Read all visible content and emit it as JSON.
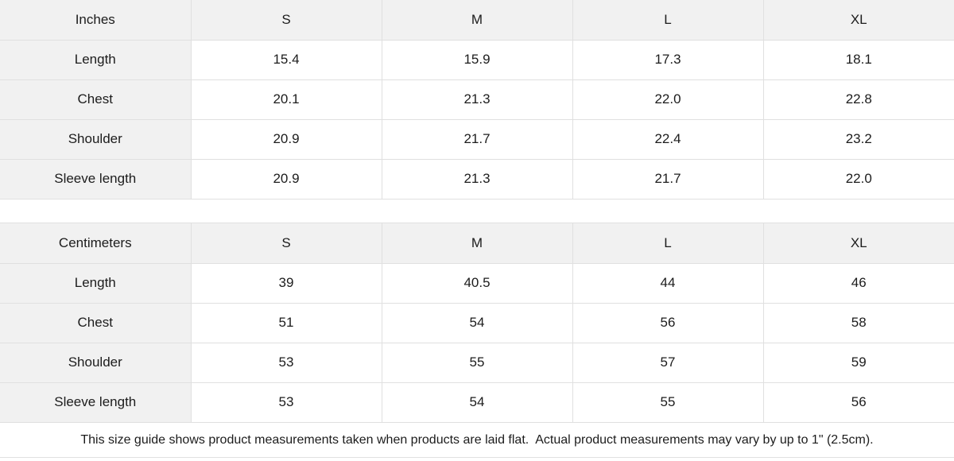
{
  "colors": {
    "header_bg": "#f1f1f1",
    "grid_border": "#e0e0e0",
    "cell_bg": "#ffffff",
    "text": "#1c1c1c"
  },
  "tables": [
    {
      "unit_label": "Inches",
      "columns": [
        "S",
        "M",
        "L",
        "XL"
      ],
      "rows": [
        {
          "label": "Length",
          "values": [
            "15.4",
            "15.9",
            "17.3",
            "18.1"
          ]
        },
        {
          "label": "Chest",
          "values": [
            "20.1",
            "21.3",
            "22.0",
            "22.8"
          ]
        },
        {
          "label": "Shoulder",
          "values": [
            "20.9",
            "21.7",
            "22.4",
            "23.2"
          ]
        },
        {
          "label": "Sleeve length",
          "values": [
            "20.9",
            "21.3",
            "21.7",
            "22.0"
          ]
        }
      ]
    },
    {
      "unit_label": "Centimeters",
      "columns": [
        "S",
        "M",
        "L",
        "XL"
      ],
      "rows": [
        {
          "label": "Length",
          "values": [
            "39",
            "40.5",
            "44",
            "46"
          ]
        },
        {
          "label": "Chest",
          "values": [
            "51",
            "54",
            "56",
            "58"
          ]
        },
        {
          "label": "Shoulder",
          "values": [
            "53",
            "55",
            "57",
            "59"
          ]
        },
        {
          "label": "Sleeve length",
          "values": [
            "53",
            "54",
            "55",
            "56"
          ]
        }
      ]
    }
  ],
  "footer": {
    "note": "This size guide shows product measurements taken when products are laid flat.  Actual product measurements may vary by up to 1\" (2.5cm)."
  }
}
